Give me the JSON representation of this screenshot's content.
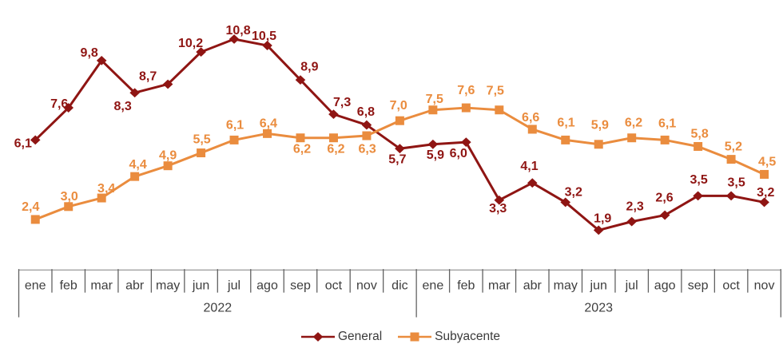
{
  "chart_data": {
    "type": "line",
    "title": "",
    "xlabel": "",
    "ylabel": "",
    "ylim": [
      0,
      12.6
    ],
    "grid": false,
    "legend_position": "bottom-center",
    "decimal_separator": ",",
    "x_groups": [
      {
        "label": "2022",
        "months": [
          "ene",
          "feb",
          "mar",
          "abr",
          "may",
          "jun",
          "jul",
          "ago",
          "sep",
          "oct",
          "nov",
          "dic"
        ]
      },
      {
        "label": "2023",
        "months": [
          "ene",
          "feb",
          "mar",
          "abr",
          "may",
          "jun",
          "jul",
          "ago",
          "sep",
          "oct",
          "nov"
        ]
      }
    ],
    "series": [
      {
        "name": "General",
        "color": "#8F1513",
        "marker": "diamond",
        "values": [
          6.1,
          7.6,
          9.8,
          8.3,
          8.7,
          10.2,
          10.8,
          10.5,
          8.9,
          7.3,
          6.8,
          5.7,
          5.9,
          6.0,
          3.3,
          4.1,
          3.2,
          1.9,
          2.3,
          2.6,
          3.5,
          3.5,
          3.2
        ],
        "label_offsets": [
          [
            -15.5,
            9
          ],
          [
            -11.5,
            0
          ],
          [
            -15.5,
            -5
          ],
          [
            -15,
            22
          ],
          [
            -25,
            -5
          ],
          [
            -13,
            -6
          ],
          [
            5,
            -6
          ],
          [
            -4,
            -7
          ],
          [
            11.4,
            -11.5
          ],
          [
            10.7,
            -10
          ],
          [
            -1,
            -11.8
          ],
          [
            -3,
            18.5
          ],
          [
            3,
            18
          ],
          [
            -9.6,
            19
          ],
          [
            -1.6,
            15.4
          ],
          [
            -3.8,
            -16
          ],
          [
            10,
            -8
          ],
          [
            5,
            -10
          ],
          [
            4,
            -14
          ],
          [
            -0.6,
            -17
          ],
          [
            1,
            -15.5
          ],
          [
            6.5,
            -12
          ],
          [
            1.7,
            -7.3
          ]
        ]
      },
      {
        "name": "Subyacente",
        "color": "#EA8C3E",
        "marker": "square",
        "values": [
          2.4,
          3.0,
          3.4,
          4.4,
          4.9,
          5.5,
          6.1,
          6.4,
          6.2,
          6.2,
          6.3,
          7.0,
          7.5,
          7.6,
          7.5,
          6.6,
          6.1,
          5.9,
          6.2,
          6.1,
          5.8,
          5.2,
          4.5
        ],
        "label_offsets": [
          [
            -6,
            -11
          ],
          [
            1,
            -8
          ],
          [
            6,
            -7
          ],
          [
            4,
            -10
          ],
          [
            0,
            -8
          ],
          [
            1,
            -12
          ],
          [
            1,
            -14
          ],
          [
            1.4,
            -8
          ],
          [
            2,
            18.7
          ],
          [
            3,
            18.7
          ],
          [
            0.7,
            21.4
          ],
          [
            -1.7,
            -14.4
          ],
          [
            1.9,
            -9
          ],
          [
            0,
            -17
          ],
          [
            -5,
            -19.5
          ],
          [
            -2.1,
            -10
          ],
          [
            0.8,
            -17
          ],
          [
            1.6,
            -19.4
          ],
          [
            2.3,
            -14.3
          ],
          [
            3,
            -16
          ],
          [
            2,
            -11
          ],
          [
            2.8,
            -11.2
          ],
          [
            3.6,
            -11
          ]
        ]
      }
    ],
    "axis": {
      "line_color": "#ACACAC",
      "tick_color": "#616161",
      "month_text_color": "#3E3E3E",
      "year_text_color": "#3E3E3E"
    }
  }
}
